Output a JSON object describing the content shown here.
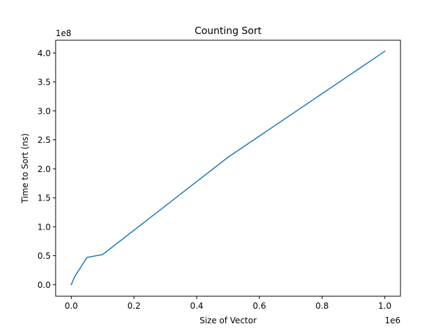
{
  "chart_data": {
    "type": "line",
    "title": "Counting Sort",
    "xlabel": "Size of Vector",
    "ylabel": "Time to Sort (ns)",
    "x_offset_label": "1e6",
    "y_offset_label": "1e8",
    "xlim": [
      -0.05,
      1.05
    ],
    "ylim": [
      -0.2,
      4.22
    ],
    "x_ticks": [
      {
        "value": 0.0,
        "label": "0.0"
      },
      {
        "value": 0.2,
        "label": "0.2"
      },
      {
        "value": 0.4,
        "label": "0.4"
      },
      {
        "value": 0.6,
        "label": "0.6"
      },
      {
        "value": 0.8,
        "label": "0.8"
      },
      {
        "value": 1.0,
        "label": "1.0"
      }
    ],
    "y_ticks": [
      {
        "value": 0.0,
        "label": "0.0"
      },
      {
        "value": 0.5,
        "label": "0.5"
      },
      {
        "value": 1.0,
        "label": "1.0"
      },
      {
        "value": 1.5,
        "label": "1.5"
      },
      {
        "value": 2.0,
        "label": "2.0"
      },
      {
        "value": 2.5,
        "label": "2.5"
      },
      {
        "value": 3.0,
        "label": "3.0"
      },
      {
        "value": 3.5,
        "label": "3.5"
      },
      {
        "value": 4.0,
        "label": "4.0"
      }
    ],
    "grid": false,
    "series": [
      {
        "color": "#1f77b4",
        "x": [
          0.0,
          0.01,
          0.05,
          0.1,
          0.5,
          1.0
        ],
        "y": [
          0.0,
          0.13,
          0.47,
          0.52,
          2.2,
          4.03
        ]
      }
    ]
  }
}
